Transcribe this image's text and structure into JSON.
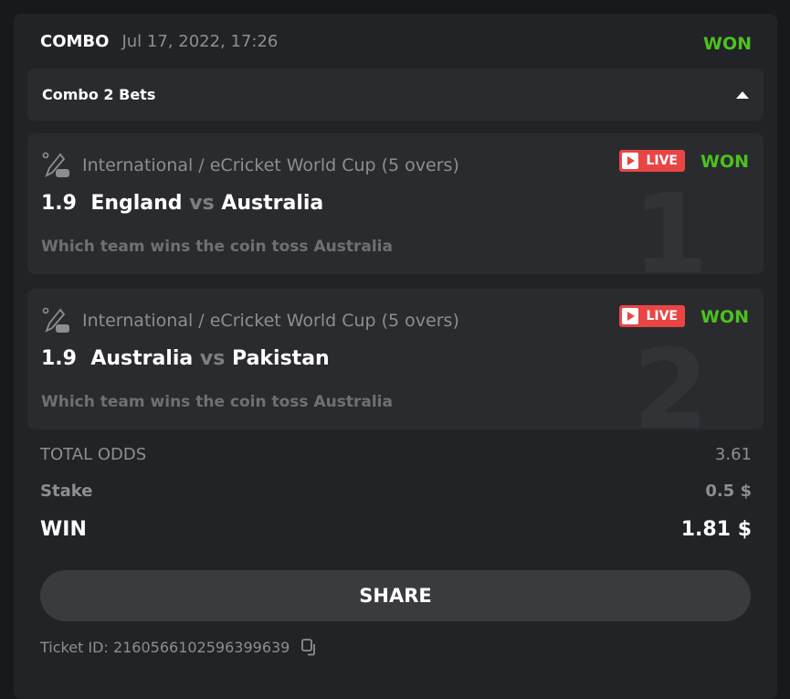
{
  "header": {
    "type": "COMBO",
    "date": "Jul 17, 2022, 17:26",
    "status": "WON"
  },
  "accordion": {
    "label": "Combo 2 Bets",
    "icon": "caret-up-icon"
  },
  "bets": [
    {
      "index": "1",
      "league": "International / eCricket World Cup (5 overs)",
      "odds": "1.9",
      "home": "England",
      "vs": "vs",
      "away": "Australia",
      "market": "Which team wins the coin toss Australia",
      "live": "LIVE",
      "status": "WON",
      "icon": "ecricket-icon"
    },
    {
      "index": "2",
      "league": "International / eCricket World Cup (5 overs)",
      "odds": "1.9",
      "home": "Australia",
      "vs": "vs",
      "away": "Pakistan",
      "market": "Which team wins the coin toss Australia",
      "live": "LIVE",
      "status": "WON",
      "icon": "ecricket-icon"
    }
  ],
  "totals": {
    "odds_label": "TOTAL ODDS",
    "odds": "3.61",
    "stake_label": "Stake",
    "stake": "0.5 $",
    "win_label": "WIN",
    "win": "1.81 $"
  },
  "share_label": "SHARE",
  "ticket": "Ticket ID: 2160566102596399639",
  "colors": {
    "won": "#4cc21e",
    "live": "#e94545"
  }
}
